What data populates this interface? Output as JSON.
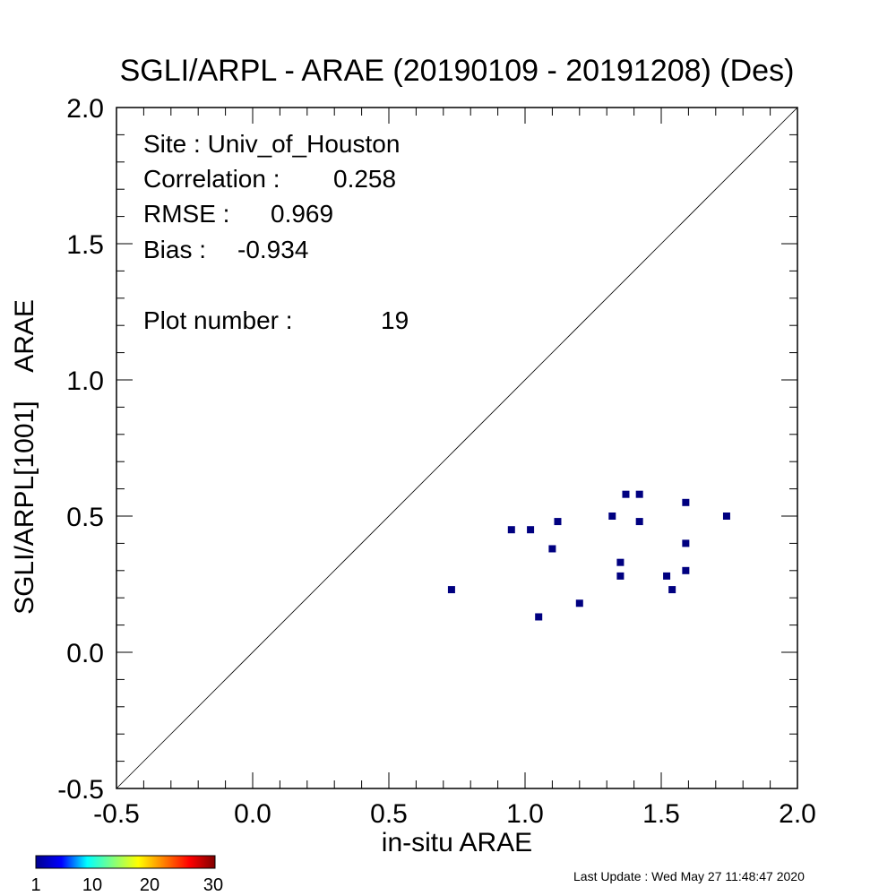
{
  "chart_data": {
    "type": "scatter",
    "title": "SGLI/ARPL - ARAE (20190109 - 20191208) (Des)",
    "xlabel": "in-situ ARAE",
    "ylabel": "SGLI/ARPL[1001]    ARAE",
    "xlim": [
      -0.5,
      2.0
    ],
    "ylim": [
      -0.5,
      2.0
    ],
    "x_ticks": [
      "-0.5",
      "0.0",
      "0.5",
      "1.0",
      "1.5",
      "2.0"
    ],
    "y_ticks": [
      "-0.5",
      "0.0",
      "0.5",
      "1.0",
      "1.5",
      "2.0"
    ],
    "reference_line": "1:1",
    "grid": false,
    "point_color": "#000080",
    "points": [
      {
        "x": 0.73,
        "y": 0.23
      },
      {
        "x": 0.95,
        "y": 0.45
      },
      {
        "x": 1.02,
        "y": 0.45
      },
      {
        "x": 1.05,
        "y": 0.13
      },
      {
        "x": 1.1,
        "y": 0.38
      },
      {
        "x": 1.12,
        "y": 0.48
      },
      {
        "x": 1.2,
        "y": 0.18
      },
      {
        "x": 1.32,
        "y": 0.5
      },
      {
        "x": 1.35,
        "y": 0.33
      },
      {
        "x": 1.35,
        "y": 0.28
      },
      {
        "x": 1.37,
        "y": 0.58
      },
      {
        "x": 1.42,
        "y": 0.58
      },
      {
        "x": 1.42,
        "y": 0.48
      },
      {
        "x": 1.52,
        "y": 0.28
      },
      {
        "x": 1.54,
        "y": 0.23
      },
      {
        "x": 1.59,
        "y": 0.55
      },
      {
        "x": 1.59,
        "y": 0.4
      },
      {
        "x": 1.59,
        "y": 0.3
      },
      {
        "x": 1.74,
        "y": 0.5
      }
    ]
  },
  "stats": {
    "site": "Site : Univ_of_Houston",
    "correlation_label": "Correlation :",
    "correlation_value": "0.258",
    "rmse_label": "RMSE :",
    "rmse_value": "0.969",
    "bias_label": "Bias :",
    "bias_value": "-0.934",
    "plot_number_label": "Plot number :",
    "plot_number_value": "19"
  },
  "colorbar": {
    "labels": [
      "1",
      "10",
      "20",
      "30"
    ],
    "colors": [
      "#00008f",
      "#0000ff",
      "#00ffff",
      "#80ff80",
      "#ffff00",
      "#ff8000",
      "#ff0000",
      "#800000"
    ]
  },
  "footer": {
    "last_update": "Last Update : Wed May 27 11:48:47 2020"
  }
}
